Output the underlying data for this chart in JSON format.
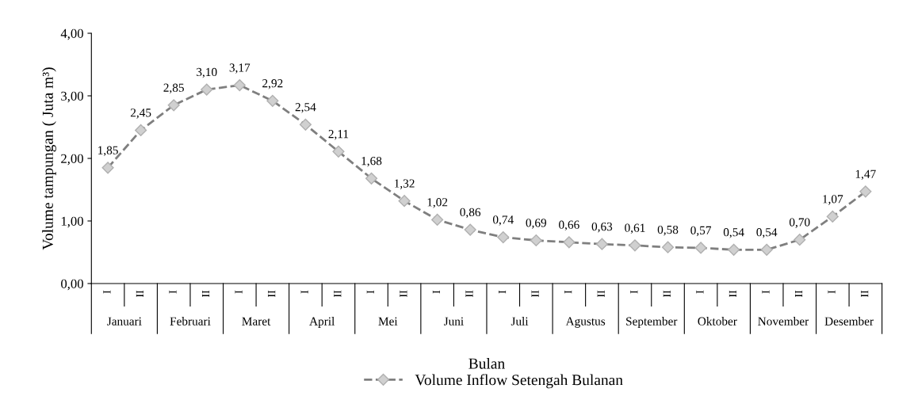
{
  "chart_data": {
    "type": "line",
    "ylabel": "Volume tampungan ( Juta m³)",
    "xlabel": "Bulan",
    "categories": [
      "I",
      "II",
      "I",
      "II",
      "I",
      "II",
      "I",
      "II",
      "I",
      "II",
      "I",
      "II",
      "I",
      "II",
      "I",
      "II",
      "I",
      "II",
      "I",
      "II",
      "I",
      "II",
      "I",
      "II"
    ],
    "annotations": [
      "Januari",
      "Februari",
      "Maret",
      "April",
      "Mei",
      "Juni",
      "Juli",
      "Agustus",
      "September",
      "Oktober",
      "November",
      "Desember"
    ],
    "series": [
      {
        "name": "Volume Inflow Setengah Bulanan",
        "color": "#7f7f7f",
        "values": [
          1.85,
          2.45,
          2.85,
          3.1,
          3.17,
          2.92,
          2.54,
          2.11,
          1.68,
          1.32,
          1.02,
          0.86,
          0.74,
          0.69,
          0.66,
          0.63,
          0.61,
          0.58,
          0.57,
          0.54,
          0.54,
          0.7,
          1.07,
          1.47
        ],
        "value_labels": [
          "1,85",
          "2,45",
          "2,85",
          "3,10",
          "3,17",
          "2,92",
          "2,54",
          "2,11",
          "1,68",
          "1,32",
          "1,02",
          "0,86",
          "0,74",
          "0,69",
          "0,66",
          "0,63",
          "0,61",
          "0,58",
          "0,57",
          "0,54",
          "0,54",
          "0,70",
          "1,07",
          "1,47"
        ]
      }
    ],
    "ylim": [
      0,
      4
    ],
    "yticks": [
      {
        "value": 0,
        "label": "0,00"
      },
      {
        "value": 1,
        "label": "1,00"
      },
      {
        "value": 2,
        "label": "2,00"
      },
      {
        "value": 3,
        "label": "3,00"
      },
      {
        "value": 4,
        "label": "4,00"
      }
    ],
    "marker": "diamond",
    "line_style": "dashed",
    "legend": "bottom",
    "grid": false
  }
}
